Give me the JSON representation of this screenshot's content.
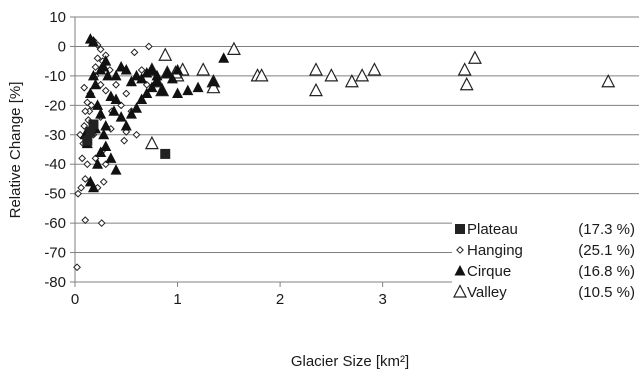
{
  "chart_data": {
    "type": "scatter",
    "title": "",
    "xlabel": "Glacier Size [km²]",
    "ylabel": "Relative Change [%]",
    "xlim": [
      0,
      5.5
    ],
    "ylim": [
      -80,
      10
    ],
    "x_ticks": [
      "0",
      "1",
      "2",
      "3",
      "4",
      "5"
    ],
    "y_ticks": [
      "10",
      "0",
      "-10",
      "-20",
      "-30",
      "-40",
      "-50",
      "-60",
      "-70",
      "-80"
    ],
    "grid": "horizontal",
    "legend_position": "bottom-right",
    "series": [
      {
        "name": "Plateau",
        "percent": "(17.3 %)",
        "marker": "square",
        "points": [
          [
            0.18,
            -26.5
          ],
          [
            0.15,
            -29
          ],
          [
            0.12,
            -32
          ],
          [
            0.88,
            -36.5
          ]
        ]
      },
      {
        "name": "Hanging",
        "percent": "(25.1 %)",
        "marker": "diamond",
        "points": [
          [
            0.02,
            -75
          ],
          [
            0.03,
            -50
          ],
          [
            0.06,
            -48
          ],
          [
            0.1,
            -59
          ],
          [
            0.22,
            -48
          ],
          [
            0.26,
            -60
          ],
          [
            0.28,
            -46
          ],
          [
            0.05,
            -30
          ],
          [
            0.08,
            -33
          ],
          [
            0.11,
            -30
          ],
          [
            0.09,
            -27
          ],
          [
            0.13,
            -25
          ],
          [
            0.14,
            -22
          ],
          [
            0.16,
            -20
          ],
          [
            0.12,
            -19
          ],
          [
            0.09,
            -14
          ],
          [
            0.15,
            -16
          ],
          [
            0.2,
            -10
          ],
          [
            0.2,
            -7
          ],
          [
            0.22,
            -4
          ],
          [
            0.25,
            -1
          ],
          [
            0.3,
            -3
          ],
          [
            0.34,
            -8
          ],
          [
            0.18,
            2
          ],
          [
            0.22,
            0.5
          ],
          [
            0.27,
            -5
          ],
          [
            0.3,
            -15
          ],
          [
            0.25,
            -24
          ],
          [
            0.28,
            -35
          ],
          [
            0.35,
            -28
          ],
          [
            0.12,
            -40
          ],
          [
            0.1,
            -45
          ],
          [
            0.07,
            -38
          ],
          [
            0.2,
            -38
          ],
          [
            0.3,
            -40
          ],
          [
            0.36,
            -22
          ],
          [
            0.45,
            -20
          ],
          [
            0.4,
            -13
          ],
          [
            0.5,
            -16
          ],
          [
            0.55,
            -22
          ],
          [
            0.6,
            -30
          ],
          [
            0.5,
            -29
          ],
          [
            0.58,
            -2
          ],
          [
            0.72,
            0
          ],
          [
            0.65,
            -8
          ],
          [
            0.7,
            -13
          ],
          [
            0.48,
            -32
          ],
          [
            0.18,
            -30
          ],
          [
            0.1,
            -22
          ],
          [
            0.25,
            -13
          ]
        ]
      },
      {
        "name": "Cirque",
        "percent": "(16.8 %)",
        "marker": "triangle",
        "points": [
          [
            0.15,
            2.5
          ],
          [
            0.18,
            1.5
          ],
          [
            0.28,
            -7
          ],
          [
            0.32,
            -10
          ],
          [
            0.3,
            -5
          ],
          [
            0.25,
            -8
          ],
          [
            0.18,
            -10
          ],
          [
            0.2,
            -13
          ],
          [
            0.15,
            -16
          ],
          [
            0.22,
            -20
          ],
          [
            0.25,
            -23
          ],
          [
            0.3,
            -27
          ],
          [
            0.35,
            -17
          ],
          [
            0.4,
            -18
          ],
          [
            0.38,
            -22
          ],
          [
            0.45,
            -24
          ],
          [
            0.5,
            -27
          ],
          [
            0.55,
            -23
          ],
          [
            0.6,
            -21
          ],
          [
            0.65,
            -18
          ],
          [
            0.7,
            -16
          ],
          [
            0.75,
            -14
          ],
          [
            0.8,
            -12
          ],
          [
            0.85,
            -15
          ],
          [
            0.9,
            -9
          ],
          [
            0.95,
            -11
          ],
          [
            1.0,
            -16
          ],
          [
            1.1,
            -15
          ],
          [
            1.2,
            -14
          ],
          [
            0.7,
            -9
          ],
          [
            0.6,
            -10
          ],
          [
            0.55,
            -12
          ],
          [
            0.5,
            -8
          ],
          [
            0.45,
            -7
          ],
          [
            0.4,
            -10
          ],
          [
            0.75,
            -8
          ],
          [
            0.8,
            -10
          ],
          [
            0.65,
            -11
          ],
          [
            0.3,
            -34
          ],
          [
            0.25,
            -36
          ],
          [
            0.22,
            -40
          ],
          [
            0.35,
            -38
          ],
          [
            0.4,
            -42
          ],
          [
            0.15,
            -46
          ],
          [
            0.18,
            -48
          ],
          [
            0.12,
            -33
          ],
          [
            0.1,
            -30
          ],
          [
            0.28,
            -30
          ],
          [
            0.2,
            -28
          ],
          [
            1.0,
            -8
          ],
          [
            1.35,
            -12
          ],
          [
            1.45,
            -4
          ]
        ]
      },
      {
        "name": "Valley",
        "percent": "(10.5 %)",
        "marker": "triangle-open",
        "points": [
          [
            0.88,
            -3
          ],
          [
            0.75,
            -8
          ],
          [
            0.8,
            -12
          ],
          [
            0.9,
            -9
          ],
          [
            1.0,
            -10
          ],
          [
            1.05,
            -8
          ],
          [
            1.25,
            -8
          ],
          [
            0.85,
            -15
          ],
          [
            0.75,
            -33
          ],
          [
            1.35,
            -12
          ],
          [
            1.35,
            -14
          ],
          [
            1.55,
            -1
          ],
          [
            1.78,
            -10
          ],
          [
            1.82,
            -10
          ],
          [
            2.35,
            -8
          ],
          [
            2.35,
            -15
          ],
          [
            2.5,
            -10
          ],
          [
            2.7,
            -12
          ],
          [
            2.8,
            -10
          ],
          [
            2.92,
            -8
          ],
          [
            3.8,
            -8
          ],
          [
            3.82,
            -13
          ],
          [
            3.9,
            -4
          ],
          [
            5.2,
            -12
          ],
          [
            0.98,
            -9
          ]
        ]
      }
    ]
  }
}
